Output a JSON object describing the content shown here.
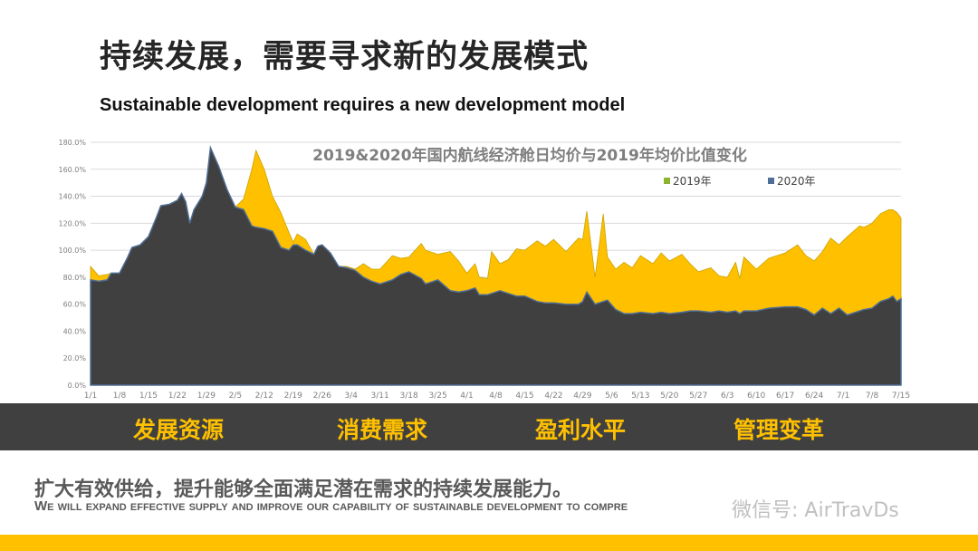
{
  "slide": {
    "title": "持续发展，需要寻求新的发展模式",
    "subtitle": "Sustainable development requires a new development model"
  },
  "band": {
    "items": [
      "发展资源",
      "消费需求",
      "盈利水平",
      "管理变革"
    ]
  },
  "footer": {
    "cn": "扩大有效供给，提升能够全面满足潜在需求的持续发展能力。",
    "en": "We will expand effective supply and improve our capability of sustainable development to compre",
    "watermark": "微信号: AirTravDs"
  },
  "colors": {
    "series2019": "#ffc000",
    "series2020": "#404040",
    "legend2019": "#8db32f",
    "legend2020": "#4f6e96",
    "band": "#404040",
    "accent": "#ffc000"
  },
  "chart_data": {
    "type": "area",
    "title": "2019&2020年国内航线经济舱日均价与2019年均价比值变化",
    "legend_position": "top-right",
    "grid": true,
    "ylim": [
      0,
      180
    ],
    "yticks": [
      "0.0%",
      "20.0%",
      "40.0%",
      "60.0%",
      "80.0%",
      "100.0%",
      "120.0%",
      "140.0%",
      "160.0%",
      "180.0%"
    ],
    "xticks": [
      "1/1",
      "1/8",
      "1/15",
      "1/22",
      "1/29",
      "2/5",
      "2/12",
      "2/19",
      "2/26",
      "3/4",
      "3/11",
      "3/18",
      "3/25",
      "4/1",
      "4/8",
      "4/15",
      "4/22",
      "4/29",
      "5/6",
      "5/13",
      "5/20",
      "5/27",
      "6/3",
      "6/10",
      "6/17",
      "6/24",
      "7/1",
      "7/8",
      "7/15"
    ],
    "x": [
      "1/1",
      "1/3",
      "1/5",
      "1/6",
      "1/8",
      "1/10",
      "1/11",
      "1/13",
      "1/15",
      "1/17",
      "1/18",
      "1/20",
      "1/22",
      "1/23",
      "1/24",
      "1/25",
      "1/26",
      "1/28",
      "1/29",
      "1/30",
      "2/1",
      "2/3",
      "2/5",
      "2/7",
      "2/9",
      "2/10",
      "2/12",
      "2/14",
      "2/16",
      "2/18",
      "2/19",
      "2/20",
      "2/22",
      "2/24",
      "2/25",
      "2/26",
      "2/28",
      "3/1",
      "3/3",
      "3/5",
      "3/7",
      "3/9",
      "3/11",
      "3/14",
      "3/16",
      "3/18",
      "3/21",
      "3/22",
      "3/25",
      "3/28",
      "3/30",
      "4/1",
      "4/3",
      "4/4",
      "4/6",
      "4/7",
      "4/9",
      "4/11",
      "4/13",
      "4/15",
      "4/18",
      "4/20",
      "4/22",
      "4/25",
      "4/28",
      "4/29",
      "4/30",
      "5/2",
      "5/4",
      "5/5",
      "5/7",
      "5/9",
      "5/11",
      "5/13",
      "5/16",
      "5/18",
      "5/20",
      "5/23",
      "5/25",
      "5/27",
      "5/30",
      "6/1",
      "6/3",
      "6/5",
      "6/6",
      "6/7",
      "6/10",
      "6/13",
      "6/17",
      "6/20",
      "6/22",
      "6/24",
      "6/26",
      "6/28",
      "6/30",
      "7/2",
      "7/5",
      "7/6",
      "7/8",
      "7/10",
      "7/12",
      "7/13",
      "7/14",
      "7/15"
    ],
    "series": [
      {
        "name": "2019年",
        "values": [
          88,
          81,
          82,
          83,
          83,
          95,
          102,
          104,
          110,
          125,
          133,
          134,
          137,
          142,
          136,
          120,
          130,
          140,
          150,
          176,
          162,
          145,
          132,
          138,
          160,
          174,
          160,
          140,
          128,
          113,
          106,
          112,
          108,
          97,
          103,
          104,
          98,
          88,
          88,
          86,
          90,
          86,
          86,
          96,
          94,
          95,
          105,
          100,
          97,
          99,
          92,
          83,
          90,
          80,
          79,
          99,
          90,
          93,
          101,
          100,
          107,
          103,
          108,
          99,
          109,
          108,
          129,
          80,
          127,
          95,
          86,
          91,
          87,
          96,
          90,
          98,
          92,
          97,
          90,
          84,
          87,
          81,
          80,
          91,
          79,
          95,
          86,
          94,
          98,
          104,
          96,
          92,
          99,
          109,
          104,
          110,
          118,
          117,
          120,
          127,
          130,
          130,
          128,
          124
        ]
      },
      {
        "name": "2020年",
        "values": [
          78,
          77,
          78,
          83,
          83,
          95,
          102,
          104,
          110,
          125,
          133,
          134,
          137,
          142,
          136,
          120,
          130,
          140,
          150,
          176,
          162,
          145,
          132,
          130,
          118,
          117,
          116,
          114,
          102,
          100,
          104,
          104,
          100,
          97,
          103,
          104,
          98,
          88,
          87,
          85,
          80,
          77,
          75,
          78,
          82,
          84,
          79,
          75,
          78,
          70,
          69,
          70,
          72,
          67,
          67,
          68,
          70,
          68,
          66,
          66,
          62,
          61,
          61,
          60,
          60,
          62,
          69,
          60,
          62,
          63,
          56,
          53,
          53,
          54,
          53,
          54,
          53,
          54,
          55,
          55,
          54,
          55,
          54,
          55,
          53,
          55,
          55,
          57,
          58,
          58,
          56,
          52,
          57,
          53,
          57,
          52,
          55,
          56,
          57,
          62,
          64,
          66,
          62,
          64
        ]
      }
    ]
  }
}
